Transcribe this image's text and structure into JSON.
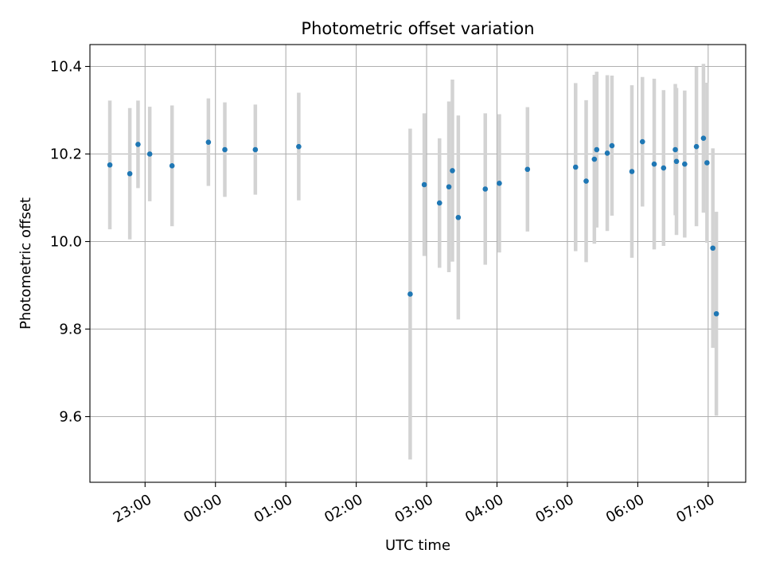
{
  "chart_data": {
    "type": "scatter",
    "title": "Photometric offset variation",
    "xlabel": "UTC time",
    "ylabel": "Photometric offset",
    "x_axis": {
      "kind": "time",
      "ticks": [
        "23:00",
        "00:00",
        "01:00",
        "02:00",
        "03:00",
        "04:00",
        "05:00",
        "06:00",
        "07:00"
      ],
      "range": [
        "22:13",
        "07:32"
      ]
    },
    "ylim": [
      9.45,
      10.45
    ],
    "yticks": [
      9.6,
      9.8,
      10.0,
      10.2,
      10.4
    ],
    "grid": true,
    "marker_color": "#1f77b4",
    "errorbar_color": "#d3d3d3",
    "points": [
      {
        "x": "22:30",
        "y": 10.175,
        "err": 0.147
      },
      {
        "x": "22:47",
        "y": 10.155,
        "err": 0.15
      },
      {
        "x": "22:54",
        "y": 10.222,
        "err": 0.1
      },
      {
        "x": "23:04",
        "y": 10.2,
        "err": 0.108
      },
      {
        "x": "23:23",
        "y": 10.173,
        "err": 0.138
      },
      {
        "x": "23:54",
        "y": 10.227,
        "err": 0.1
      },
      {
        "x": "00:08",
        "y": 10.21,
        "err": 0.108
      },
      {
        "x": "00:34",
        "y": 10.21,
        "err": 0.103
      },
      {
        "x": "01:11",
        "y": 10.217,
        "err": 0.123
      },
      {
        "x": "02:46",
        "y": 9.88,
        "err": 0.378
      },
      {
        "x": "02:58",
        "y": 10.13,
        "err": 0.163
      },
      {
        "x": "03:11",
        "y": 10.088,
        "err": 0.148
      },
      {
        "x": "03:19",
        "y": 10.125,
        "err": 0.195
      },
      {
        "x": "03:22",
        "y": 10.162,
        "err": 0.208
      },
      {
        "x": "03:27",
        "y": 10.055,
        "err": 0.233
      },
      {
        "x": "03:50",
        "y": 10.12,
        "err": 0.173
      },
      {
        "x": "04:02",
        "y": 10.133,
        "err": 0.158
      },
      {
        "x": "04:26",
        "y": 10.165,
        "err": 0.142
      },
      {
        "x": "05:07",
        "y": 10.17,
        "err": 0.192
      },
      {
        "x": "05:16",
        "y": 10.138,
        "err": 0.185
      },
      {
        "x": "05:23",
        "y": 10.188,
        "err": 0.193
      },
      {
        "x": "05:25",
        "y": 10.21,
        "err": 0.178
      },
      {
        "x": "05:34",
        "y": 10.202,
        "err": 0.178
      },
      {
        "x": "05:38",
        "y": 10.219,
        "err": 0.16
      },
      {
        "x": "05:55",
        "y": 10.16,
        "err": 0.197
      },
      {
        "x": "06:04",
        "y": 10.228,
        "err": 0.148
      },
      {
        "x": "06:14",
        "y": 10.177,
        "err": 0.195
      },
      {
        "x": "06:22",
        "y": 10.168,
        "err": 0.178
      },
      {
        "x": "06:32",
        "y": 10.21,
        "err": 0.15
      },
      {
        "x": "06:33",
        "y": 10.183,
        "err": 0.168
      },
      {
        "x": "06:40",
        "y": 10.177,
        "err": 0.168
      },
      {
        "x": "06:50",
        "y": 10.217,
        "err": 0.182
      },
      {
        "x": "06:56",
        "y": 10.236,
        "err": 0.17
      },
      {
        "x": "06:59",
        "y": 10.18,
        "err": 0.183
      },
      {
        "x": "07:04",
        "y": 9.985,
        "err": 0.228
      },
      {
        "x": "07:07",
        "y": 9.835,
        "err": 0.233
      }
    ]
  }
}
